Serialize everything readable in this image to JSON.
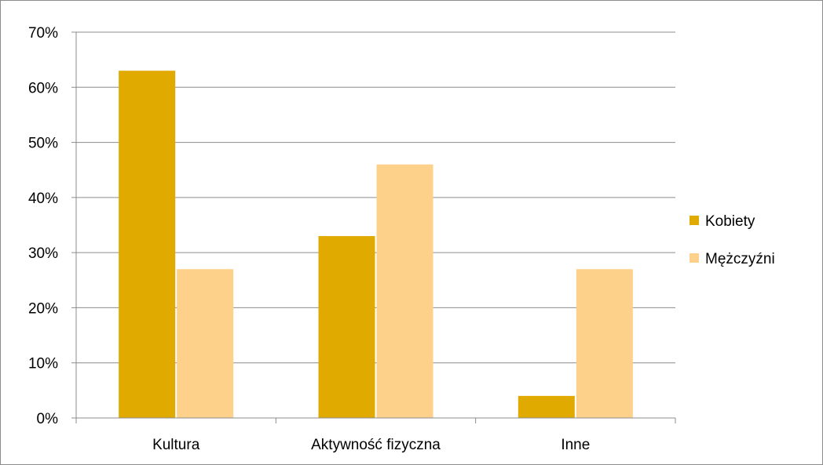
{
  "chart_data": {
    "type": "bar",
    "categories": [
      "Kultura",
      "Aktywność fizyczna",
      "Inne"
    ],
    "series": [
      {
        "name": "Kobiety",
        "values": [
          63,
          33,
          4
        ],
        "color": "#e0aa00"
      },
      {
        "name": "Mężczyźni",
        "values": [
          27,
          46,
          27
        ],
        "color": "#fdd18a"
      }
    ],
    "y_ticks": [
      "0%",
      "10%",
      "20%",
      "30%",
      "40%",
      "50%",
      "60%",
      "70%"
    ],
    "ylim": [
      0,
      70
    ],
    "y_unit": "%",
    "grid": true,
    "legend_position": "right",
    "title": "",
    "xlabel": "",
    "ylabel": ""
  }
}
